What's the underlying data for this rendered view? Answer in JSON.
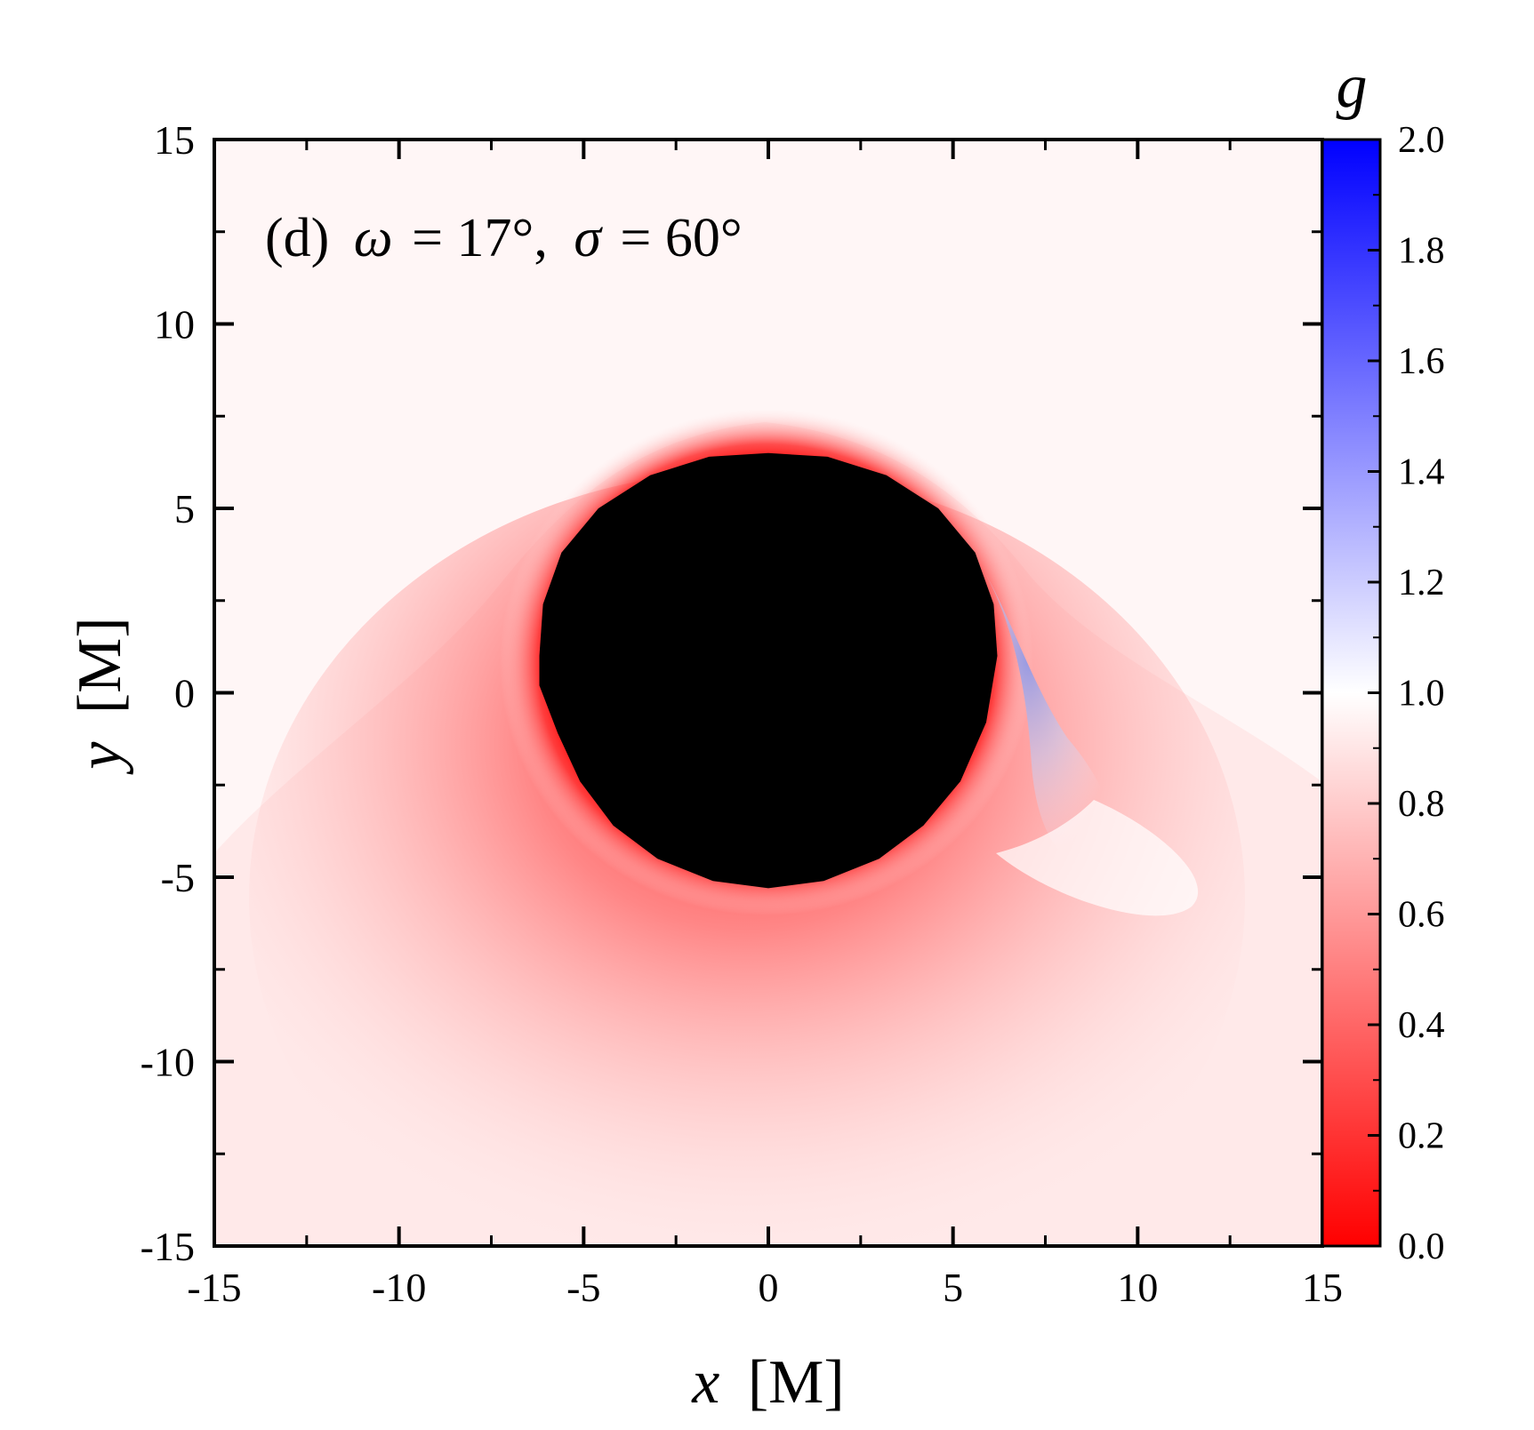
{
  "chart_data": {
    "type": "heatmap",
    "title": "",
    "annotation": {
      "panel": "(d)",
      "omega_symbol": "ω",
      "omega_value": "= 17°,",
      "sigma_symbol": "σ",
      "sigma_value": "= 60°"
    },
    "xlabel": {
      "var": "x",
      "unit": "[M]"
    },
    "ylabel": {
      "var": "y",
      "unit": "[M]"
    },
    "xlim": [
      -15,
      15
    ],
    "ylim": [
      -15,
      15
    ],
    "xticks": [
      -15,
      -10,
      -5,
      0,
      5,
      10,
      15
    ],
    "yticks": [
      -15,
      -10,
      -5,
      0,
      5,
      10,
      15
    ],
    "xtick_labels": [
      "-15",
      "-10",
      "-5",
      "0",
      "5",
      "10",
      "15"
    ],
    "ytick_labels": [
      "-15",
      "-10",
      "-5",
      "0",
      "5",
      "10",
      "15"
    ],
    "colorbar": {
      "label": "g",
      "range": [
        0.0,
        2.0
      ],
      "ticks": [
        0.0,
        0.2,
        0.4,
        0.6,
        0.8,
        1.0,
        1.2,
        1.4,
        1.6,
        1.8,
        2.0
      ],
      "tick_labels": [
        "0.0",
        "0.2",
        "0.4",
        "0.6",
        "0.8",
        "1.0",
        "1.2",
        "1.4",
        "1.6",
        "1.8",
        "2.0"
      ],
      "colors": {
        "low": "#ff0000",
        "mid": "#ffffff",
        "high": "#0000ff"
      }
    },
    "shadow": {
      "color": "#000000",
      "boundary_points": [
        [
          -6.2,
          1.0
        ],
        [
          -6.1,
          2.4
        ],
        [
          -5.6,
          3.8
        ],
        [
          -4.6,
          5.0
        ],
        [
          -3.2,
          5.9
        ],
        [
          -1.6,
          6.4
        ],
        [
          0.0,
          6.5
        ],
        [
          1.6,
          6.4
        ],
        [
          3.2,
          5.9
        ],
        [
          4.6,
          5.0
        ],
        [
          5.6,
          3.8
        ],
        [
          6.1,
          2.4
        ],
        [
          6.2,
          1.0
        ],
        [
          5.9,
          -0.8
        ],
        [
          5.2,
          -2.4
        ],
        [
          4.2,
          -3.6
        ],
        [
          3.0,
          -4.5
        ],
        [
          1.5,
          -5.1
        ],
        [
          0.0,
          -5.3
        ],
        [
          -1.5,
          -5.1
        ],
        [
          -3.0,
          -4.5
        ],
        [
          -4.2,
          -3.6
        ],
        [
          -5.1,
          -2.4
        ],
        [
          -5.7,
          -1.1
        ],
        [
          -6.2,
          0.2
        ]
      ]
    },
    "field_regions": [
      {
        "kind": "redshift_ring",
        "g": 0.05
      },
      {
        "kind": "redshift_lobe",
        "center": [
          -1.0,
          -7.0
        ],
        "g": 0.6
      },
      {
        "kind": "blueshift_tail",
        "center": [
          7.3,
          -1.5
        ],
        "g": 1.25
      },
      {
        "kind": "background",
        "g": 0.95
      }
    ]
  }
}
